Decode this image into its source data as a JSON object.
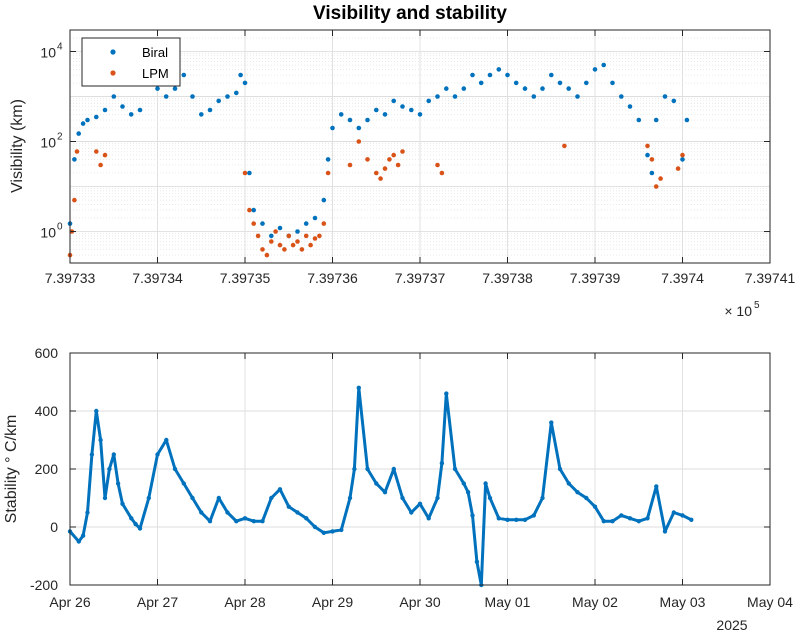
{
  "colors": {
    "biral": "#0072BD",
    "lpm": "#D95319",
    "grid": "#dedede",
    "axis": "#262626"
  },
  "chart_data": [
    {
      "type": "scatter",
      "title": "Visibility and stability",
      "ylabel": "Visibility (km)",
      "yscale": "log",
      "xlim": [
        739733,
        739741
      ],
      "ylim": [
        0.2,
        30000
      ],
      "x_ticks": [
        739733,
        739734,
        739735,
        739736,
        739737,
        739738,
        739739,
        739740,
        739741
      ],
      "x_tick_labels": [
        "7.39733",
        "7.39734",
        "7.39735",
        "7.39736",
        "7.39737",
        "7.39738",
        "7.39739",
        "7.3974",
        "7.39741"
      ],
      "x_exponent_base": "× 10",
      "x_exponent": "5",
      "y_ticks": [
        1,
        100,
        10000
      ],
      "y_tick_base": "10",
      "y_tick_exponents": [
        "0",
        "2",
        "4"
      ],
      "grid": true,
      "minor_grid": true,
      "legend": "top-left",
      "series": [
        {
          "name": "Biral",
          "color": "#0072BD",
          "x": [
            739733.0,
            739733.05,
            739733.1,
            739733.15,
            739733.2,
            739733.3,
            739733.4,
            739733.5,
            739733.6,
            739733.7,
            739733.8,
            739733.9,
            739734.0,
            739734.1,
            739734.2,
            739734.3,
            739734.4,
            739734.5,
            739734.6,
            739734.7,
            739734.8,
            739734.9,
            739734.95,
            739735.0,
            739735.05,
            739735.1,
            739735.2,
            739735.3,
            739735.4,
            739735.5,
            739735.6,
            739735.7,
            739735.8,
            739735.9,
            739735.95,
            739736.0,
            739736.1,
            739736.2,
            739736.3,
            739736.4,
            739736.5,
            739736.6,
            739736.7,
            739736.8,
            739736.9,
            739737.0,
            739737.1,
            739737.2,
            739737.3,
            739737.4,
            739737.5,
            739737.6,
            739737.7,
            739737.8,
            739737.9,
            739738.0,
            739738.1,
            739738.2,
            739738.3,
            739738.4,
            739738.5,
            739738.6,
            739738.7,
            739738.8,
            739738.9,
            739739.0,
            739739.1,
            739739.2,
            739739.3,
            739739.4,
            739739.5,
            739739.6,
            739739.65,
            739739.7,
            739739.8,
            739739.9,
            739740.0,
            739740.05
          ],
          "y": [
            1.5,
            40,
            150,
            250,
            300,
            350,
            500,
            1000,
            600,
            400,
            500,
            2000,
            1500,
            1000,
            1500,
            3000,
            1000,
            400,
            500,
            800,
            1000,
            1200,
            3000,
            2000,
            20,
            3,
            1.5,
            0.8,
            1.2,
            0.8,
            1.0,
            1.5,
            2.0,
            5,
            40,
            200,
            400,
            300,
            200,
            300,
            500,
            400,
            800,
            600,
            500,
            400,
            800,
            1000,
            1500,
            1000,
            1500,
            3000,
            2000,
            3000,
            4000,
            3000,
            2000,
            1500,
            1000,
            1500,
            3000,
            2000,
            1500,
            1000,
            2000,
            4000,
            5000,
            2000,
            1000,
            600,
            300,
            50,
            20,
            300,
            1000,
            800,
            40,
            300
          ]
        },
        {
          "name": "LPM",
          "color": "#D95319",
          "x": [
            739733.0,
            739733.02,
            739733.05,
            739733.08,
            739733.3,
            739733.35,
            739733.4,
            739735.0,
            739735.05,
            739735.1,
            739735.15,
            739735.2,
            739735.25,
            739735.3,
            739735.35,
            739735.4,
            739735.45,
            739735.5,
            739735.55,
            739735.6,
            739735.65,
            739735.7,
            739735.75,
            739735.8,
            739735.85,
            739735.9,
            739735.95,
            739736.2,
            739736.3,
            739736.4,
            739736.5,
            739736.55,
            739736.6,
            739736.65,
            739736.7,
            739736.75,
            739736.8,
            739737.2,
            739737.25,
            739738.65,
            739739.6,
            739739.65,
            739739.7,
            739739.75,
            739739.95,
            739740.0
          ],
          "y": [
            0.3,
            1,
            5,
            60,
            60,
            30,
            50,
            20,
            3,
            1.5,
            0.8,
            0.4,
            0.3,
            0.6,
            1.0,
            0.5,
            0.4,
            0.8,
            0.5,
            0.6,
            0.4,
            0.8,
            0.5,
            0.7,
            0.8,
            1.5,
            20,
            30,
            100,
            40,
            20,
            15,
            25,
            40,
            50,
            30,
            60,
            30,
            20,
            80,
            80,
            40,
            10,
            15,
            25,
            50
          ]
        }
      ]
    },
    {
      "type": "scatter",
      "ylabel": "Stability    ° C/km",
      "ylim": [
        -200,
        600
      ],
      "y_ticks": [
        -200,
        0,
        200,
        400,
        600
      ],
      "x_ticks": [
        "Apr 26",
        "Apr 27",
        "Apr 28",
        "Apr 29",
        "Apr 30",
        "May 01",
        "May 02",
        "May 03",
        "May 04"
      ],
      "x_year_label": "2025",
      "grid": true,
      "series": [
        {
          "color": "#0072BD",
          "x": [
            0,
            0.1,
            0.15,
            0.2,
            0.25,
            0.3,
            0.35,
            0.4,
            0.45,
            0.5,
            0.55,
            0.6,
            0.7,
            0.75,
            0.8,
            0.9,
            1.0,
            1.1,
            1.2,
            1.3,
            1.4,
            1.5,
            1.6,
            1.7,
            1.8,
            1.9,
            2.0,
            2.1,
            2.2,
            2.3,
            2.4,
            2.5,
            2.6,
            2.7,
            2.8,
            2.9,
            3.0,
            3.1,
            3.2,
            3.25,
            3.3,
            3.4,
            3.5,
            3.6,
            3.7,
            3.8,
            3.9,
            4.0,
            4.1,
            4.2,
            4.25,
            4.3,
            4.4,
            4.5,
            4.55,
            4.6,
            4.65,
            4.7,
            4.75,
            4.8,
            4.9,
            5.0,
            5.1,
            5.2,
            5.3,
            5.4,
            5.5,
            5.6,
            5.7,
            5.8,
            5.9,
            6.0,
            6.1,
            6.2,
            6.3,
            6.4,
            6.5,
            6.6,
            6.7,
            6.8,
            6.9,
            7.0,
            7.1
          ],
          "y": [
            -15,
            -50,
            -30,
            50,
            250,
            400,
            300,
            100,
            200,
            250,
            150,
            80,
            30,
            10,
            -5,
            100,
            250,
            300,
            200,
            150,
            100,
            50,
            20,
            100,
            50,
            20,
            30,
            20,
            20,
            100,
            130,
            70,
            50,
            30,
            0,
            -20,
            -15,
            -10,
            100,
            200,
            480,
            200,
            150,
            120,
            200,
            100,
            50,
            80,
            30,
            100,
            220,
            460,
            200,
            150,
            120,
            40,
            -120,
            -200,
            150,
            100,
            30,
            25,
            25,
            25,
            40,
            100,
            360,
            200,
            150,
            120,
            100,
            70,
            20,
            20,
            40,
            30,
            20,
            30,
            140,
            -15,
            50,
            40,
            25
          ]
        }
      ]
    }
  ]
}
